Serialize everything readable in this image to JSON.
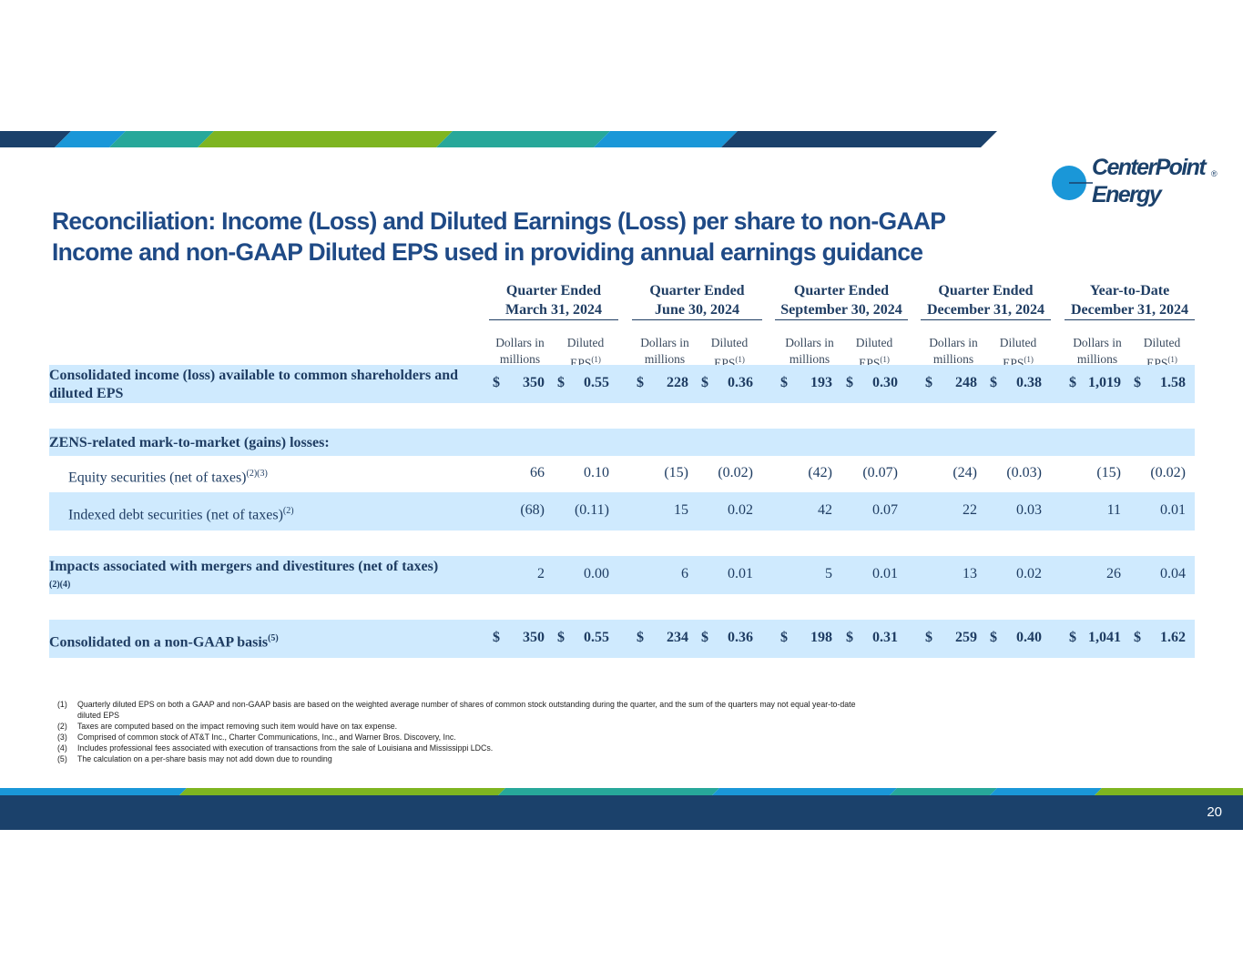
{
  "brand": {
    "name_line1": "CenterPoint",
    "name_line2": "Energy",
    "registered": "®",
    "colors": {
      "navy": "#1b416b",
      "blue": "#1a97d8",
      "teal": "#27a89a",
      "green": "#7eb521",
      "title": "#1f4a86",
      "shade": "#cfeafe"
    }
  },
  "title": {
    "line1": "Reconciliation: Income (Loss) and Diluted Earnings (Loss) per share to non-GAAP",
    "line2": "Income and non-GAAP Diluted EPS used in providing annual earnings guidance"
  },
  "periods": [
    {
      "line1": "Quarter Ended",
      "line2": "March 31, 2024"
    },
    {
      "line1": "Quarter Ended",
      "line2": "June 30, 2024"
    },
    {
      "line1": "Quarter Ended",
      "line2": "September 30, 2024"
    },
    {
      "line1": "Quarter Ended",
      "line2": "December 31, 2024"
    },
    {
      "line1": "Year-to-Date",
      "line2": "December 31, 2024"
    }
  ],
  "subheaders": {
    "dollars_line1": "Dollars in",
    "dollars_line2": "millions",
    "eps_line1": "Diluted",
    "eps_line2": "EPS",
    "eps_note": "(1)"
  },
  "currency_symbol": "$",
  "rows": [
    {
      "label": "Consolidated income (loss) available to common shareholders and diluted EPS",
      "note": "",
      "values": [
        "350",
        "0.55",
        "228",
        "0.36",
        "193",
        "0.30",
        "248",
        "0.38",
        "1,019",
        "1.58"
      ]
    },
    {
      "label": "ZENS-related mark-to-market (gains) losses:"
    },
    {
      "label": "Equity securities (net of taxes)",
      "note": "(2)(3)",
      "values": [
        "66",
        "0.10",
        "(15)",
        "(0.02)",
        "(42)",
        "(0.07)",
        "(24)",
        "(0.03)",
        "(15)",
        "(0.02)"
      ]
    },
    {
      "label": "Indexed debt securities (net of taxes)",
      "note": "(2)",
      "values": [
        "(68)",
        "(0.11)",
        "15",
        "0.02",
        "42",
        "0.07",
        "22",
        "0.03",
        "11",
        "0.01"
      ]
    },
    {
      "label": "Impacts associated with mergers and divestitures (net of taxes)",
      "note": "(2)(4)",
      "values": [
        "2",
        "0.00",
        "6",
        "0.01",
        "5",
        "0.01",
        "13",
        "0.02",
        "26",
        "0.04"
      ]
    },
    {
      "label": "Consolidated on a non-GAAP basis",
      "note": "(5)",
      "values": [
        "350",
        "0.55",
        "234",
        "0.36",
        "198",
        "0.31",
        "259",
        "0.40",
        "1,041",
        "1.62"
      ]
    }
  ],
  "footnotes": [
    {
      "num": "(1)",
      "text": "Quarterly diluted EPS on both a GAAP and non-GAAP basis are based on the weighted average number of shares of common stock outstanding during the quarter, and the sum of the quarters may not equal year-to-date diluted EPS"
    },
    {
      "num": "(2)",
      "text": "Taxes are computed based on the impact removing such item would have on tax expense."
    },
    {
      "num": "(3)",
      "text": "Comprised of common stock of AT&T Inc., Charter Communications, Inc., and Warner Bros. Discovery, Inc."
    },
    {
      "num": "(4)",
      "text": "Includes professional fees associated with execution of transactions from the sale of Louisiana and Mississippi LDCs."
    },
    {
      "num": "(5)",
      "text": "The calculation on a per-share basis may not add down due to rounding"
    }
  ],
  "page_number": "20"
}
